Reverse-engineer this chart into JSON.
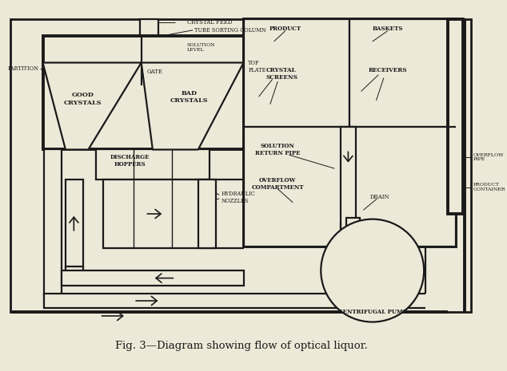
{
  "title": "Fig. 3—Diagram showing flow of optical liquor.",
  "bg_color": "#ede9d8",
  "line_color": "#1a1a1a",
  "lw": 1.6,
  "lw_thick": 2.8,
  "lw_thin": 1.0,
  "lw_dash": 0.9,
  "labels": {
    "crystal_feed": "CRYSTAL FEED",
    "tube_sorting": "TUBE SORTING COLUMN",
    "solution_level": "SOLUTION\nLEVEL",
    "partition": "PARTITION",
    "gate": "GATE",
    "top_plate": "TOP\nPLATE",
    "good_crystals": "GOOD\nCRYSTALS",
    "bad_crystals": "BAD\nCRYSTALS",
    "discharge_hoppers": "DISCHARGE\nHOPPERS",
    "hydraulic_nozzles": "HYDRAULIC\nNOZZLES",
    "product": "PRODUCT",
    "baskets": "BASKETS",
    "crystal_screens": "CRYSTAL\nSCREENS",
    "receivers": "RECEIVERS",
    "solution_return_pipe": "SOLUTION\nRETURN PIPE",
    "overflow_compartment": "OVERFLOW\nCOMPARTMENT",
    "drain": "DRAIN",
    "overflow_pipe": "OVERFLOW\nPIPE",
    "product_container": "PRODUCT\nCONTAINER",
    "centrifugal_pump": "CENTRIFUGAL PUMP"
  }
}
